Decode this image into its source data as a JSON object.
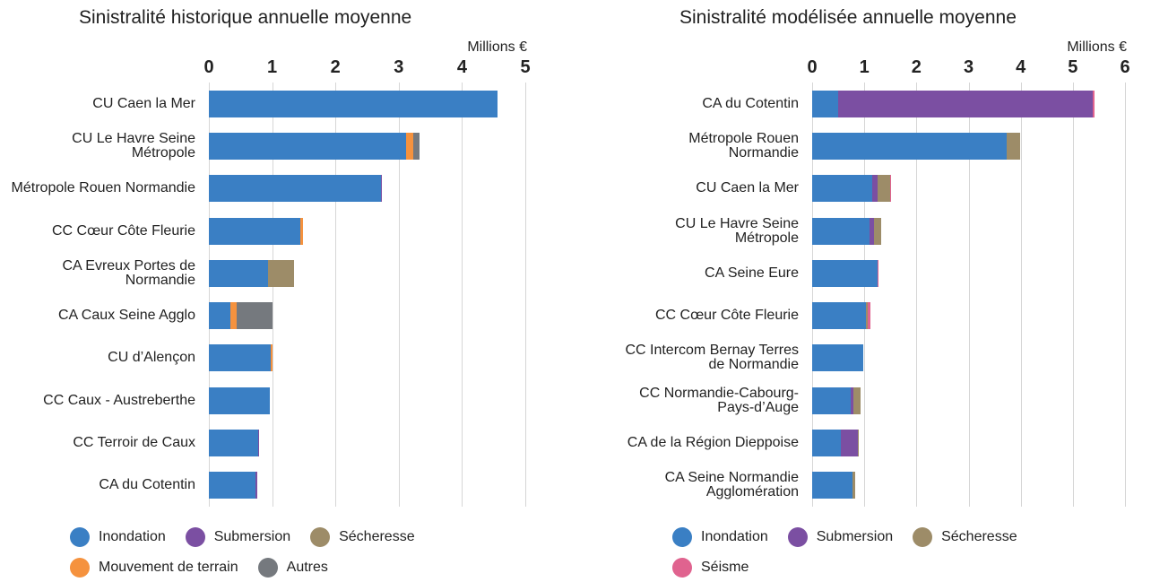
{
  "chart_data": [
    {
      "type": "bar",
      "orientation": "horizontal",
      "stacked": true,
      "title": "Sinistralité historique annuelle moyenne",
      "xlabel": "Millions €",
      "categories": [
        "CU Caen la Mer",
        "CU Le Havre Seine Métropole",
        "Métropole Rouen Normandie",
        "CC Cœur Côte Fleurie",
        "CA Evreux Portes de Normandie",
        "CA Caux Seine Agglo",
        "CU d’Alençon",
        "CC Caux - Austreberthe",
        "CC Terroir de Caux",
        "CA du Cotentin"
      ],
      "series": [
        {
          "name": "Inondation",
          "color": "#3a7fc4",
          "values": [
            4.56,
            3.12,
            2.72,
            1.44,
            0.93,
            0.34,
            0.98,
            0.96,
            0.78,
            0.74
          ]
        },
        {
          "name": "Submersion",
          "color": "#7b4fa2",
          "values": [
            0,
            0,
            0.02,
            0,
            0,
            0,
            0,
            0,
            0.02,
            0.03
          ]
        },
        {
          "name": "Sécheresse",
          "color": "#9d8c68",
          "values": [
            0,
            0,
            0,
            0,
            0.42,
            0,
            0,
            0,
            0,
            0
          ]
        },
        {
          "name": "Mouvement de terrain",
          "color": "#f5923e",
          "values": [
            0,
            0.11,
            0,
            0.05,
            0,
            0.1,
            0.02,
            0,
            0,
            0
          ]
        },
        {
          "name": "Autres",
          "color": "#75797e",
          "values": [
            0,
            0.1,
            0,
            0,
            0,
            0.57,
            0,
            0,
            0,
            0
          ]
        }
      ],
      "xlim": [
        0,
        5
      ],
      "xticks": [
        0,
        1,
        2,
        3,
        4,
        5
      ],
      "grid": true
    },
    {
      "type": "bar",
      "orientation": "horizontal",
      "stacked": true,
      "title": "Sinistralité modélisée annuelle moyenne",
      "xlabel": "Millions €",
      "categories": [
        "CA du Cotentin",
        "Métropole Rouen Normandie",
        "CU Caen la Mer",
        "CU Le Havre Seine Métropole",
        "CA Seine Eure",
        "CC Cœur Côte Fleurie",
        "CC Intercom Bernay Terres de Normandie",
        "CC Normandie-Cabourg-Pays-d’Auge",
        "CA de la Région Dieppoise",
        "CA Seine Normandie Agglomération"
      ],
      "series": [
        {
          "name": "Inondation",
          "color": "#3a7fc4",
          "values": [
            0.5,
            3.73,
            1.15,
            1.1,
            1.25,
            1.03,
            0.98,
            0.74,
            0.55,
            0.77
          ]
        },
        {
          "name": "Submersion",
          "color": "#7b4fa2",
          "values": [
            4.88,
            0,
            0.1,
            0.08,
            0,
            0,
            0,
            0.05,
            0.33,
            0
          ]
        },
        {
          "name": "Sécheresse",
          "color": "#9d8c68",
          "values": [
            0,
            0.26,
            0.24,
            0.14,
            0,
            0.04,
            0,
            0.14,
            0.02,
            0.05
          ]
        },
        {
          "name": "Séisme",
          "color": "#e0638f",
          "values": [
            0.03,
            0,
            0.02,
            0,
            0.03,
            0.04,
            0,
            0,
            0,
            0
          ]
        }
      ],
      "xlim": [
        0,
        6
      ],
      "xticks": [
        0,
        1,
        2,
        3,
        4,
        5,
        6
      ],
      "grid": true
    }
  ]
}
